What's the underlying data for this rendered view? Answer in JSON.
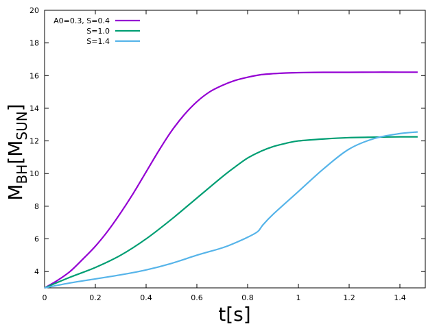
{
  "chart_data": {
    "type": "line",
    "xlabel": "t[s]",
    "ylabel_main": "M",
    "ylabel_sub1": "BH",
    "ylabel_mid": "[M",
    "ylabel_sub2": "SUN",
    "ylabel_end": "]",
    "xlim": [
      0,
      1.5
    ],
    "ylim": [
      3,
      20
    ],
    "x_ticks": [
      0,
      0.2,
      0.4,
      0.6,
      0.8,
      1,
      1.2,
      1.4
    ],
    "x_tick_labels": [
      "0",
      "0.2",
      "0.4",
      "0.6",
      "0.8",
      "1",
      "1.2",
      "1.4"
    ],
    "y_ticks": [
      4,
      6,
      8,
      10,
      12,
      14,
      16,
      18,
      20
    ],
    "y_tick_labels": [
      "4",
      "6",
      "8",
      "10",
      "12",
      "14",
      "16",
      "18",
      "20"
    ],
    "grid": false,
    "legend_position": "top-left",
    "series": [
      {
        "name": "A0=0.3, S=0.4",
        "color": "#9400d3",
        "x": [
          0,
          0.05,
          0.1,
          0.15,
          0.2,
          0.25,
          0.3,
          0.35,
          0.4,
          0.45,
          0.5,
          0.55,
          0.6,
          0.65,
          0.7,
          0.75,
          0.8,
          0.85,
          0.9,
          0.95,
          1.0,
          1.1,
          1.2,
          1.3,
          1.4,
          1.47
        ],
        "y": [
          3.0,
          3.45,
          4.0,
          4.75,
          5.55,
          6.5,
          7.6,
          8.8,
          10.1,
          11.4,
          12.6,
          13.6,
          14.4,
          15.0,
          15.4,
          15.7,
          15.9,
          16.05,
          16.12,
          16.16,
          16.18,
          16.2,
          16.2,
          16.21,
          16.21,
          16.21
        ]
      },
      {
        "name": "S=1.0",
        "color": "#009e73",
        "x": [
          0,
          0.1,
          0.2,
          0.3,
          0.4,
          0.5,
          0.6,
          0.7,
          0.75,
          0.8,
          0.85,
          0.9,
          0.95,
          1.0,
          1.1,
          1.2,
          1.3,
          1.4,
          1.47
        ],
        "y": [
          3.0,
          3.65,
          4.25,
          5.0,
          6.0,
          7.2,
          8.5,
          9.8,
          10.4,
          10.95,
          11.35,
          11.65,
          11.85,
          12.0,
          12.12,
          12.2,
          12.23,
          12.25,
          12.25
        ]
      },
      {
        "name": "S=1.4",
        "color": "#56b4e9",
        "x": [
          0,
          0.1,
          0.2,
          0.3,
          0.4,
          0.5,
          0.6,
          0.7,
          0.75,
          0.8,
          0.84,
          0.86,
          0.9,
          1.0,
          1.1,
          1.2,
          1.3,
          1.4,
          1.47
        ],
        "y": [
          3.0,
          3.3,
          3.55,
          3.8,
          4.1,
          4.5,
          5.0,
          5.45,
          5.75,
          6.1,
          6.45,
          6.85,
          7.5,
          8.9,
          10.3,
          11.5,
          12.15,
          12.45,
          12.55
        ]
      }
    ]
  }
}
